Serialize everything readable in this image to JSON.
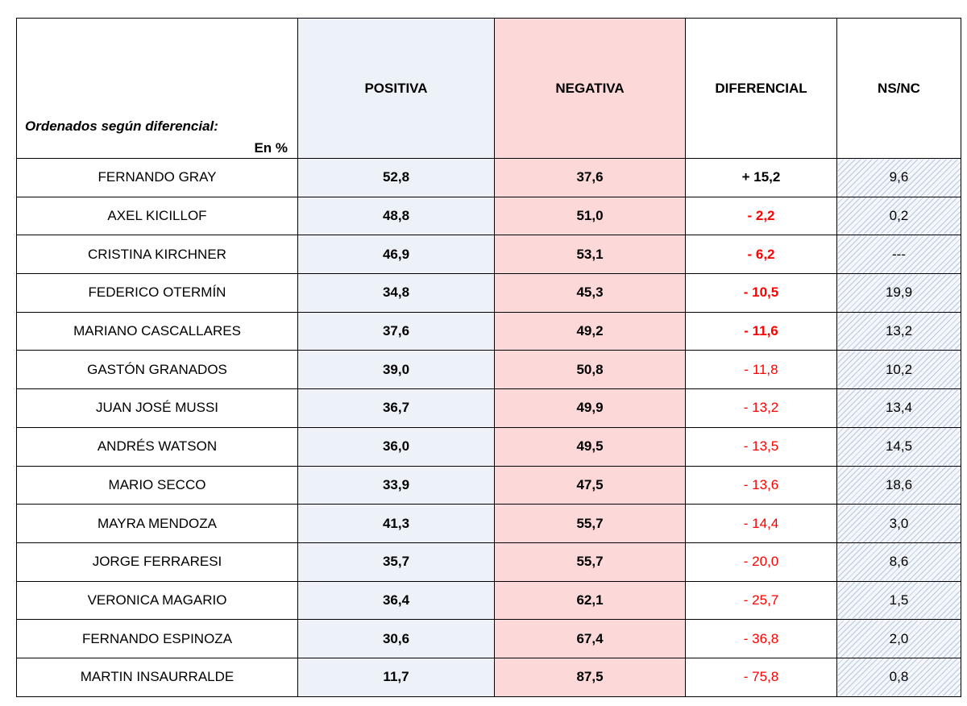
{
  "header": {
    "note": "Ordenados según diferencial:",
    "unit": "En %",
    "columns": [
      "POSITIVA",
      "NEGATIVA",
      "DIFERENCIAL",
      "NS/NC"
    ]
  },
  "chart_data": {
    "type": "table",
    "columns": [
      "",
      "POSITIVA",
      "NEGATIVA",
      "DIFERENCIAL",
      "NS/NC"
    ],
    "rows": [
      {
        "name": "FERNANDO GRAY",
        "positiva": "52,8",
        "negativa": "37,6",
        "diferencial": "+ 15,2",
        "nsnc": "9,6"
      },
      {
        "name": "AXEL KICILLOF",
        "positiva": "48,8",
        "negativa": "51,0",
        "diferencial": "- 2,2",
        "nsnc": "0,2"
      },
      {
        "name": "CRISTINA KIRCHNER",
        "positiva": "46,9",
        "negativa": "53,1",
        "diferencial": "- 6,2",
        "nsnc": "---"
      },
      {
        "name": "FEDERICO OTERMÍN",
        "positiva": "34,8",
        "negativa": "45,3",
        "diferencial": "- 10,5",
        "nsnc": "19,9"
      },
      {
        "name": "MARIANO CASCALLARES",
        "positiva": "37,6",
        "negativa": "49,2",
        "diferencial": "- 11,6",
        "nsnc": "13,2"
      },
      {
        "name": "GASTÓN GRANADOS",
        "positiva": "39,0",
        "negativa": "50,8",
        "diferencial": "- 11,8",
        "nsnc": "10,2"
      },
      {
        "name": "JUAN JOSÉ MUSSI",
        "positiva": "36,7",
        "negativa": "49,9",
        "diferencial": "- 13,2",
        "nsnc": "13,4"
      },
      {
        "name": "ANDRÉS WATSON",
        "positiva": "36,0",
        "negativa": "49,5",
        "diferencial": "- 13,5",
        "nsnc": "14,5"
      },
      {
        "name": "MARIO SECCO",
        "positiva": "33,9",
        "negativa": "47,5",
        "diferencial": "- 13,6",
        "nsnc": "18,6"
      },
      {
        "name": "MAYRA MENDOZA",
        "positiva": "41,3",
        "negativa": "55,7",
        "diferencial": "- 14,4",
        "nsnc": "3,0"
      },
      {
        "name": "JORGE FERRARESI",
        "positiva": "35,7",
        "negativa": "55,7",
        "diferencial": "- 20,0",
        "nsnc": "8,6"
      },
      {
        "name": "VERONICA MAGARIO",
        "positiva": "36,4",
        "negativa": "62,1",
        "diferencial": "- 25,7",
        "nsnc": "1,5"
      },
      {
        "name": "FERNANDO ESPINOZA",
        "positiva": "30,6",
        "negativa": "67,4",
        "diferencial": "- 36,8",
        "nsnc": "2,0"
      },
      {
        "name": "MARTIN INSAURRALDE",
        "positiva": "11,7",
        "negativa": "87,5",
        "diferencial": "- 75,8",
        "nsnc": "0,8"
      }
    ],
    "colors": {
      "positiva_bg": "#edf2f8",
      "negativa_bg": "#fdd8d8",
      "negative_text": "#ff0000",
      "nsnc_hatch": "#b9c7d9"
    }
  }
}
